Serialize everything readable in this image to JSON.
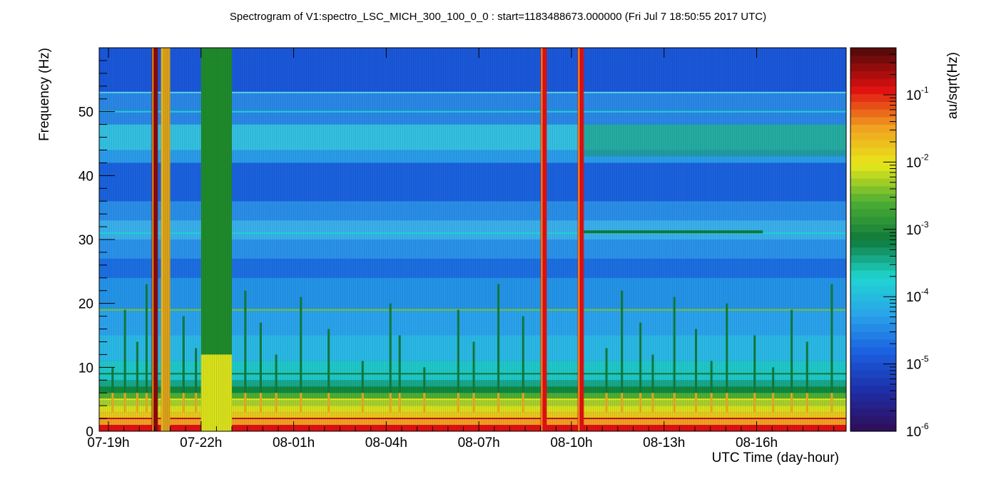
{
  "chart_data": {
    "type": "heatmap",
    "title": "Spectrogram of V1:spectro_LSC_MICH_300_100_0_0 : start=1183488673.000000 (Fri Jul  7 18:50:55 2017 UTC)",
    "xlabel": "UTC Time (day-hour)",
    "ylabel": "Frequency (Hz)",
    "zlabel": "au/sqrt(Hz)",
    "x_ticks": [
      "07-19h",
      "07-22h",
      "08-01h",
      "08-04h",
      "08-07h",
      "08-10h",
      "08-13h",
      "08-16h"
    ],
    "x_tick_hours": [
      0,
      3,
      6,
      9,
      12,
      15,
      18,
      21
    ],
    "x_range_hours": [
      -0.3,
      23.9
    ],
    "y_ticks": [
      "0",
      "10",
      "20",
      "30",
      "40",
      "50"
    ],
    "y_tick_values": [
      0,
      10,
      20,
      30,
      40,
      50
    ],
    "ylim": [
      0,
      60
    ],
    "z_scale": "log",
    "z_range": [
      1e-06,
      0.5
    ],
    "z_tick_bases": [
      "10",
      "10",
      "10",
      "10",
      "10",
      "10"
    ],
    "z_tick_exponents": [
      "-6",
      "-5",
      "-4",
      "-3",
      "-2",
      "-1"
    ],
    "colormap": [
      "#2e0f5e",
      "#1e2fa8",
      "#1a5fe0",
      "#2aa3ea",
      "#1fd6d0",
      "#0f7a3a",
      "#4cae34",
      "#e8e81a",
      "#f0a020",
      "#e01010",
      "#5a0a0a"
    ],
    "features": {
      "loud_bands_hours": [
        [
          1.4,
          1.6
        ],
        [
          1.7,
          2.0
        ],
        [
          3.0,
          4.0
        ],
        [
          14.0,
          14.2
        ],
        [
          15.2,
          15.4
        ]
      ],
      "spectral_lines_hz": [
        2,
        5,
        9,
        19,
        31,
        50,
        53
      ],
      "noise_floor_low_freq_hz": 7
    }
  }
}
